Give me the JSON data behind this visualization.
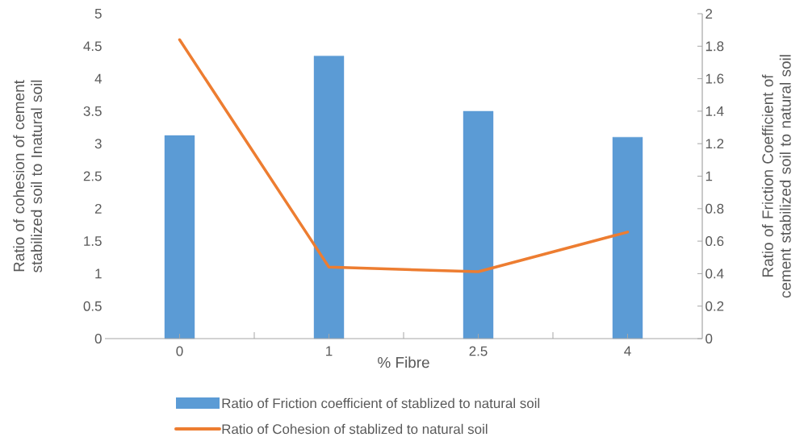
{
  "chart_data": {
    "type": "bar",
    "xlabel": "% Fibre",
    "ylabel": "Ratio of cohesion of  cement stabilized soil  to Inatural soil",
    "y2label": "Ratio of Friction Coefficient of  cement stabilized soil to natural soil",
    "categories": [
      "0",
      "1",
      "2.5",
      "4"
    ],
    "series": [
      {
        "name": "Ratio of Friction coefficient of stablized to natural soil",
        "axis": "y2",
        "color": "#5b9bd5",
        "values": [
          1.25,
          1.74,
          1.4,
          1.24
        ]
      },
      {
        "name": "Ratio of Cohesion of stablized to natural soil",
        "type": "line",
        "color": "#ed7d31",
        "values": [
          4.6,
          1.1,
          1.03,
          1.64
        ]
      }
    ],
    "ylim": [
      0,
      5
    ],
    "yticks": [
      0,
      0.5,
      1,
      1.5,
      2,
      2.5,
      3,
      3.5,
      4,
      4.5,
      5
    ],
    "y2lim": [
      0,
      2
    ],
    "y2ticks": [
      0,
      0.2,
      0.4,
      0.6,
      0.8,
      1,
      1.2,
      1.4,
      1.6,
      1.8,
      2
    ],
    "legend": "bottom",
    "marker": "none",
    "line_style": "solid"
  }
}
